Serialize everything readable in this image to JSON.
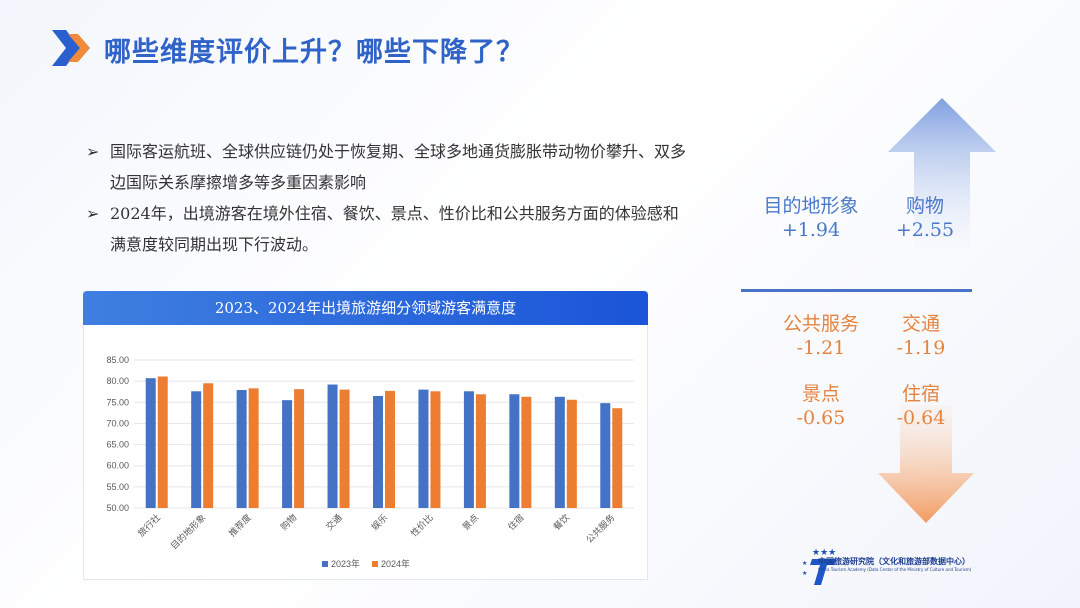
{
  "title": "哪些维度评价上升？哪些下降了？",
  "bullets": [
    "国际客运航班、全球供应链仍处于恢复期、全球多地通货膨胀带动物价攀升、双多边国际关系摩擦增多等多重因素影响",
    "2024年，出境游客在境外住宿、餐饮、景点、性价比和公共服务方面的体验感和满意度较同期出现下行波动。"
  ],
  "bullet_marker": "➢",
  "up_items": [
    {
      "name": "目的地形象",
      "delta": "+1.94"
    },
    {
      "name": "购物",
      "delta": "+2.55"
    }
  ],
  "down_items": [
    {
      "name": "公共服务",
      "delta": "-1.21"
    },
    {
      "name": "交通",
      "delta": "-1.19"
    },
    {
      "name": "景点",
      "delta": "-0.65"
    },
    {
      "name": "住宿",
      "delta": "-0.64"
    }
  ],
  "colors": {
    "up": "#4a78c8",
    "down": "#e58440",
    "series2023": "#4472c4",
    "series2024": "#ed7d31"
  },
  "org": {
    "name": "中国旅游研究院（文化和旅游部数据中心）",
    "name_en": "China Tourism Academy (Data Center of the Ministry of Culture and Tourism)"
  },
  "chart_data": {
    "type": "bar",
    "title": "2023、2024年出境旅游细分领域游客满意度",
    "categories": [
      "旅行社",
      "目的地形象",
      "推荐度",
      "购物",
      "交通",
      "娱乐",
      "性价比",
      "景点",
      "住宿",
      "餐饮",
      "公共服务"
    ],
    "series": [
      {
        "name": "2023年",
        "values": [
          80.7,
          77.6,
          77.9,
          75.5,
          79.2,
          76.5,
          78.0,
          77.6,
          76.9,
          76.3,
          74.8
        ]
      },
      {
        "name": "2024年",
        "values": [
          81.1,
          79.5,
          78.3,
          78.1,
          78.0,
          77.7,
          77.6,
          76.9,
          76.3,
          75.6,
          73.6
        ]
      }
    ],
    "yticks": [
      "50.00",
      "55.00",
      "60.00",
      "65.00",
      "70.00",
      "75.00",
      "80.00",
      "85.00"
    ],
    "ylim": [
      50,
      85
    ],
    "grid": true,
    "legend": "bottom"
  }
}
